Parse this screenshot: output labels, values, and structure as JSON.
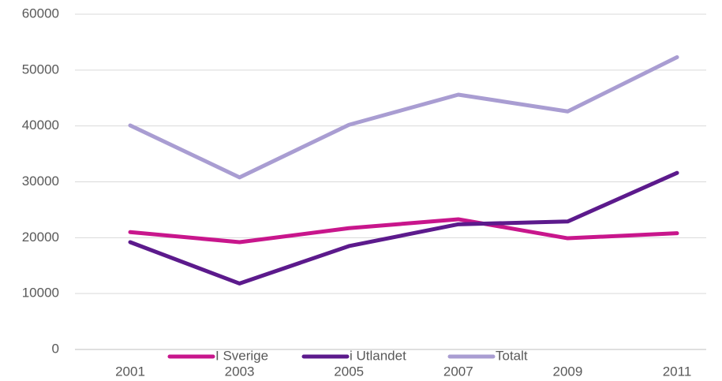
{
  "chart_data": {
    "type": "line",
    "categories": [
      "2001",
      "2003",
      "2005",
      "2007",
      "2009",
      "2011"
    ],
    "series": [
      {
        "name": "I Sverige",
        "color": "#c8168c",
        "values": [
          21000,
          19200,
          21700,
          23300,
          19900,
          20800
        ]
      },
      {
        "name": "i Utlandet",
        "color": "#5c1a8c",
        "values": [
          19200,
          11800,
          18500,
          22400,
          22900,
          31600
        ]
      },
      {
        "name": "Totalt",
        "color": "#a99dd2",
        "values": [
          40100,
          30800,
          40200,
          45600,
          42600,
          52300
        ]
      }
    ],
    "ylim": [
      0,
      60000
    ],
    "yticks": [
      0,
      10000,
      20000,
      30000,
      40000,
      50000,
      60000
    ],
    "grid": true,
    "legend": "bottom"
  }
}
